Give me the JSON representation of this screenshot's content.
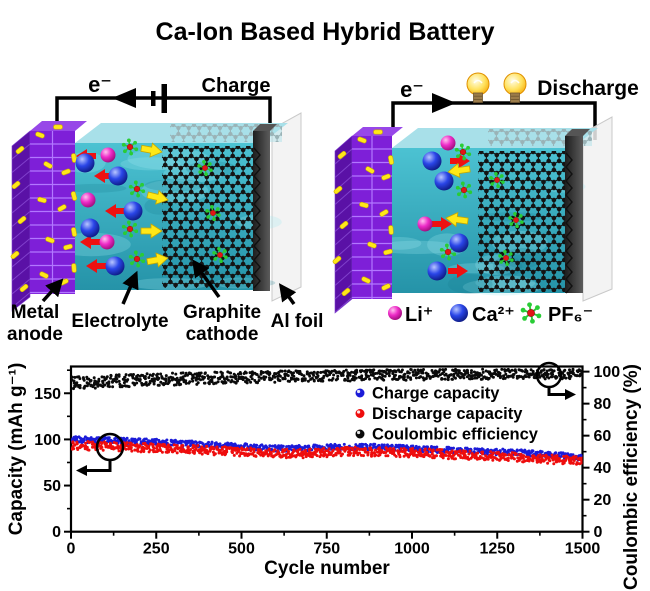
{
  "title": "Ca-Ion Based Hybrid Battery",
  "charge_panel": {
    "electron_label": "e⁻",
    "mode_label": "Charge",
    "part_labels": {
      "anode_line1": "Metal",
      "anode_line2": "anode",
      "electrolyte": "Electrolyte",
      "cathode_line1": "Graphite",
      "cathode_line2": "cathode",
      "foil": "Al foil"
    }
  },
  "discharge_panel": {
    "electron_label": "e⁻",
    "mode_label": "Discharge",
    "mode_color": "#ee0000"
  },
  "ion_legend": {
    "li": {
      "label": "Li⁺",
      "color": "#e828c6"
    },
    "ca": {
      "label": "Ca²⁺",
      "color": "#2335d6"
    },
    "pf6": {
      "label": "PF₆⁻",
      "color": "#2ecc3a"
    }
  },
  "chart_data": {
    "type": "scatter",
    "xlabel": "Cycle number",
    "ylabel_left": "Capacity (mAh g⁻¹)",
    "ylabel_right": "Coulombic efficiency (%)",
    "xlim": [
      0,
      1500
    ],
    "ylim_left": [
      0,
      179
    ],
    "ylim_right": [
      0,
      103.2
    ],
    "xticks": [
      0,
      250,
      500,
      750,
      1000,
      1250,
      1500
    ],
    "xminor": [
      125,
      375,
      625,
      875,
      1125,
      1375
    ],
    "yticks_left": [
      0,
      50,
      100,
      150
    ],
    "yminor_left": [
      25,
      75,
      125,
      175
    ],
    "yticks_right": [
      0,
      20,
      40,
      60,
      80,
      100
    ],
    "yminor_right": [
      10,
      30,
      50,
      70,
      90
    ],
    "grid": false,
    "legend_position": "inside upper right",
    "series": [
      {
        "name": "Charge capacity",
        "color": "#1b1bd8",
        "axis": "left",
        "noise": 3.2,
        "x": [
          0,
          50,
          150,
          250,
          350,
          450,
          550,
          620,
          700,
          800,
          900,
          1000,
          1100,
          1200,
          1300,
          1400,
          1500
        ],
        "y": [
          100,
          99.5,
          98.5,
          97,
          95.5,
          93.5,
          91.5,
          90,
          90.5,
          92,
          91.5,
          90,
          88.5,
          87,
          86,
          83.5,
          80.5
        ]
      },
      {
        "name": "Discharge capacity",
        "color": "#ee0d0d",
        "axis": "left",
        "noise": 4.8,
        "x": [
          0,
          50,
          150,
          250,
          350,
          450,
          550,
          620,
          700,
          800,
          900,
          1000,
          1100,
          1200,
          1300,
          1400,
          1500
        ],
        "y": [
          93.5,
          93,
          92,
          90.5,
          89,
          87.5,
          85.5,
          84.5,
          85,
          87,
          86.5,
          85.5,
          84,
          82.5,
          81,
          78.5,
          76.5
        ]
      },
      {
        "name": "Coulombic efficiency",
        "color": "#0a0a0a",
        "axis": "right",
        "noise": 4,
        "noise_end": 3,
        "x": [
          0,
          50,
          150,
          300,
          500,
          700,
          900,
          1100,
          1300,
          1500
        ],
        "y": [
          93,
          93.5,
          94.3,
          95.3,
          96.4,
          97.2,
          97.8,
          98.2,
          98.4,
          98.5
        ]
      }
    ]
  }
}
